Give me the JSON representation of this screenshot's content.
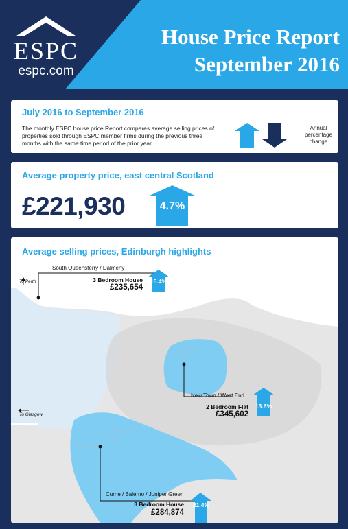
{
  "header": {
    "logo_name": "ESPC",
    "logo_url": "espc.com",
    "title_line1": "House Price Report",
    "title_line2": "September 2016"
  },
  "intro": {
    "heading": "July 2016 to September 2016",
    "body": "The monthly ESPC house price Report compares average selling prices of properties sold through ESPC member firms during the previous three months with the same time period of the prior year.",
    "legend_line1": "Annual",
    "legend_line2": "percentage",
    "legend_line3": "change"
  },
  "average": {
    "heading": "Average property price, east central Scotland",
    "price": "£221,930",
    "change": "4.7%",
    "direction": "up"
  },
  "map": {
    "heading": "Average selling prices, Edinburgh highlights",
    "directions": {
      "perth": "To Perth",
      "glasgow": "To Glasgow"
    },
    "area_labels": {
      "new_town_1": "New Town",
      "new_town_2": "West End",
      "juniper_1": "Juniper Green",
      "juniper_2": "Currie",
      "balerno": "Balerno"
    },
    "highlights": [
      {
        "area": "South Queensferry / Dalmeny",
        "property": "3 Bedroom House",
        "price": "£235,654",
        "change": "15.4%",
        "direction": "up"
      },
      {
        "area": "New Town / West End",
        "property": "2 Bedroom Flat",
        "price": "£345,602",
        "change": "13.6%",
        "direction": "up"
      },
      {
        "area": "Currie / Balerno / Juniper Green",
        "property": "3 Bedroom House",
        "price": "£284,874",
        "change": "21.4%",
        "direction": "up"
      }
    ]
  },
  "colors": {
    "navy": "#1b2f5c",
    "accent": "#2aa7e6",
    "highlight_area": "#7fcdf2",
    "land": "#e6e6e6"
  }
}
